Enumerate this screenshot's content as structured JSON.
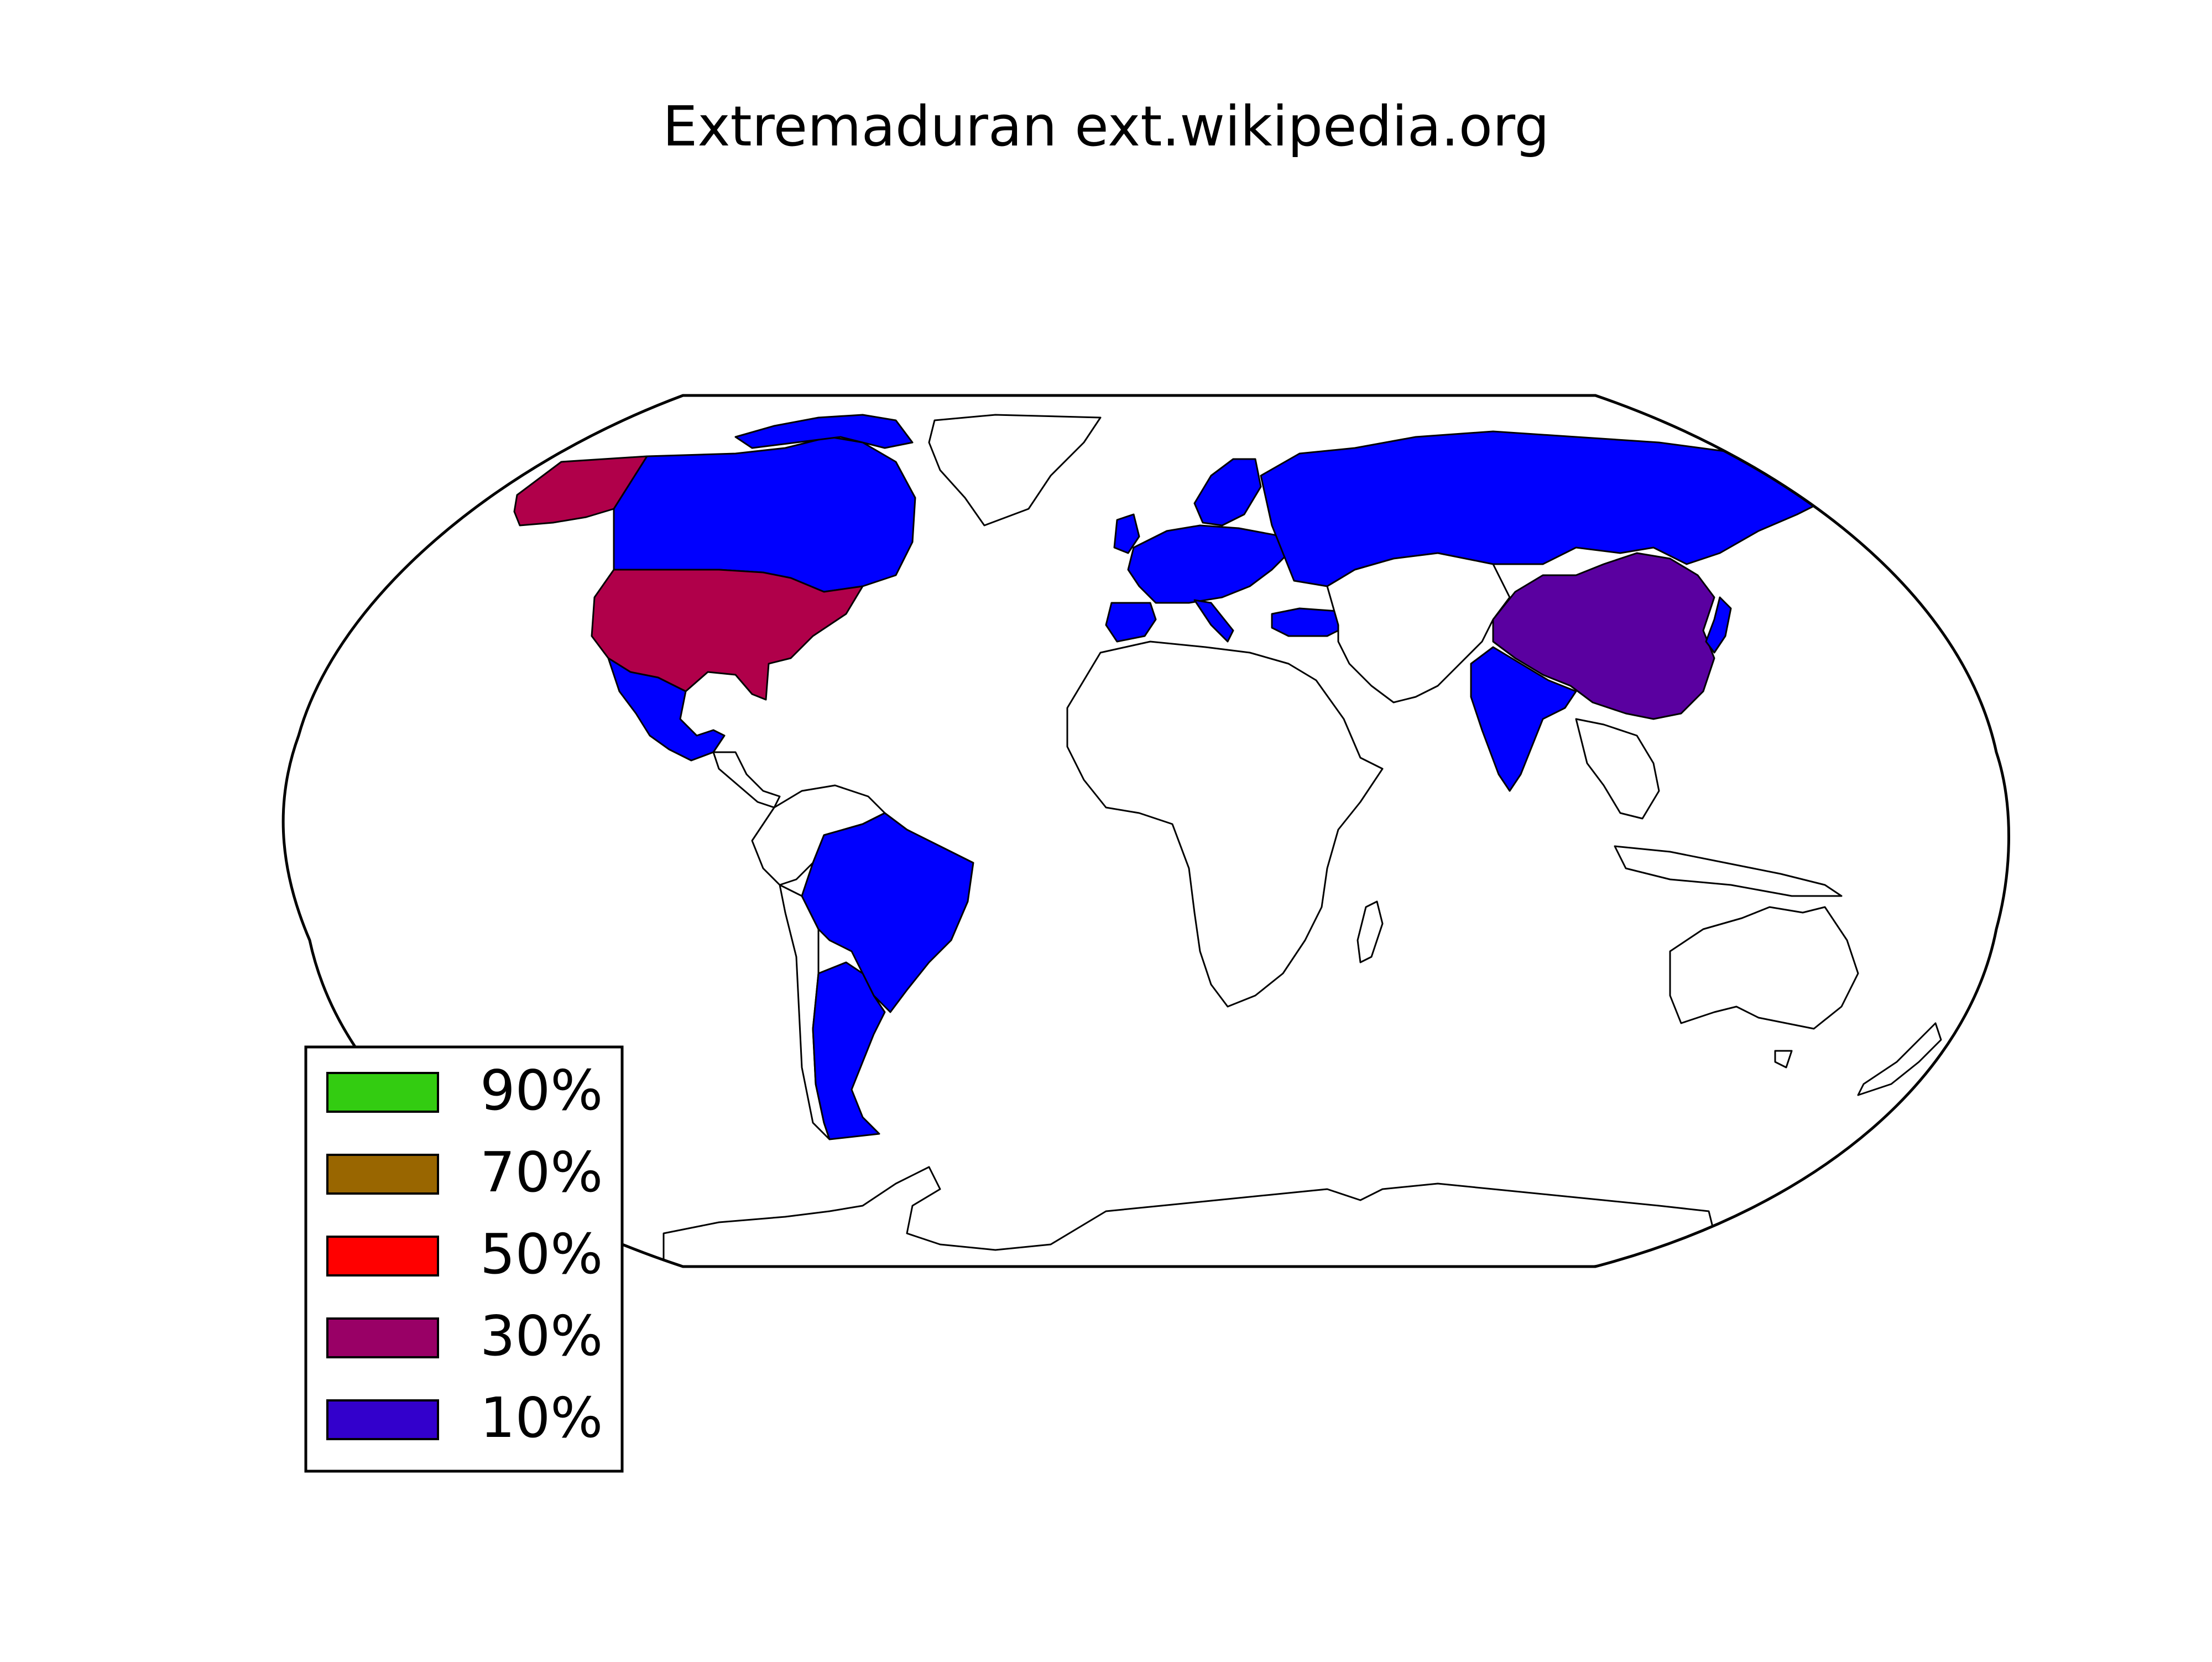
{
  "title": "Extremaduran ext.wikipedia.org",
  "legend": {
    "placement": "lower-left",
    "items": [
      {
        "label": "90%",
        "color": "#33cc11"
      },
      {
        "label": "70%",
        "color": "#996600"
      },
      {
        "label": "50%",
        "color": "#ff0000"
      },
      {
        "label": "30%",
        "color": "#990066"
      },
      {
        "label": "10%",
        "color": "#3300cc"
      }
    ]
  },
  "regions": [
    {
      "name": "Alaska",
      "color": "#b0004a",
      "share_percent": 30
    },
    {
      "name": "United States",
      "color": "#b0004a",
      "share_percent": 30
    },
    {
      "name": "Canada",
      "color": "#0000ff",
      "share_percent": 10
    },
    {
      "name": "Greenland",
      "color": "#ffffff",
      "share_percent": 0
    },
    {
      "name": "Mexico",
      "color": "#0000ff",
      "share_percent": 10
    },
    {
      "name": "Central America",
      "color": "#ffffff",
      "share_percent": 0
    },
    {
      "name": "Brazil",
      "color": "#0000ff",
      "share_percent": 10
    },
    {
      "name": "Argentina",
      "color": "#0000ff",
      "share_percent": 10
    },
    {
      "name": "Rest of South America",
      "color": "#ffffff",
      "share_percent": 0
    },
    {
      "name": "Western Europe",
      "color": "#0000ff",
      "share_percent": 10
    },
    {
      "name": "Scandinavia",
      "color": "#0000ff",
      "share_percent": 10
    },
    {
      "name": "Russia",
      "color": "#0000ff",
      "share_percent": 10
    },
    {
      "name": "Turkey",
      "color": "#0000ff",
      "share_percent": 10
    },
    {
      "name": "China",
      "color": "#5a00a0",
      "share_percent": 20
    },
    {
      "name": "India",
      "color": "#0000ff",
      "share_percent": 10
    },
    {
      "name": "Japan",
      "color": "#0000ff",
      "share_percent": 10
    },
    {
      "name": "Africa",
      "color": "#ffffff",
      "share_percent": 0
    },
    {
      "name": "Middle East and Central Asia",
      "color": "#ffffff",
      "share_percent": 0
    },
    {
      "name": "Southeast Asia",
      "color": "#ffffff",
      "share_percent": 0
    },
    {
      "name": "Australia",
      "color": "#ffffff",
      "share_percent": 0
    },
    {
      "name": "New Zealand",
      "color": "#ffffff",
      "share_percent": 0
    },
    {
      "name": "Antarctica",
      "color": "#ffffff",
      "share_percent": 0
    }
  ]
}
